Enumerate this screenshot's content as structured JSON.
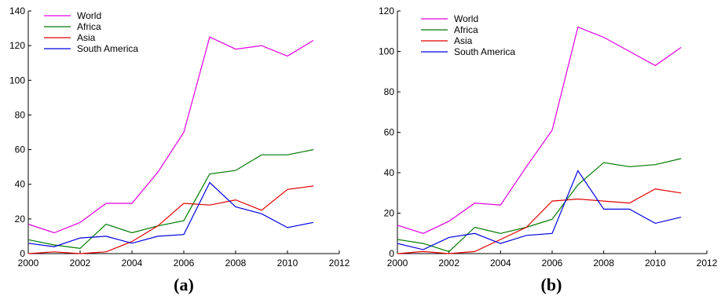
{
  "chart_data": [
    {
      "type": "line",
      "panel_label": "(a)",
      "xlim": [
        2000,
        2012
      ],
      "ylim": [
        0,
        140
      ],
      "xticks": [
        2000,
        2002,
        2004,
        2006,
        2008,
        2010,
        2012
      ],
      "yticks": [
        0,
        20,
        40,
        60,
        80,
        100,
        120,
        140
      ],
      "x": [
        2000,
        2001,
        2002,
        2003,
        2004,
        2005,
        2006,
        2007,
        2008,
        2009,
        2010,
        2011
      ],
      "legend_position": "top-left",
      "grid": false,
      "series": [
        {
          "name": "World",
          "color": "#e000e0",
          "values": [
            17,
            12,
            18,
            29,
            29,
            47,
            70,
            125,
            118,
            120,
            114,
            123
          ]
        },
        {
          "name": "Africa",
          "color": "#007a00",
          "values": [
            8,
            5,
            3,
            17,
            12,
            16,
            19,
            46,
            48,
            57,
            57,
            60
          ]
        },
        {
          "name": "Asia",
          "color": "#e00000",
          "values": [
            0,
            1,
            0,
            1,
            7,
            16,
            29,
            28,
            31,
            25,
            37,
            39
          ]
        },
        {
          "name": "South America",
          "color": "#0000e0",
          "values": [
            6,
            4,
            9,
            10,
            6,
            10,
            11,
            41,
            27,
            23,
            15,
            18
          ]
        }
      ]
    },
    {
      "type": "line",
      "panel_label": "(b)",
      "xlim": [
        2000,
        2012
      ],
      "ylim": [
        0,
        120
      ],
      "xticks": [
        2000,
        2002,
        2004,
        2006,
        2008,
        2010,
        2012
      ],
      "yticks": [
        0,
        20,
        40,
        60,
        80,
        100,
        120
      ],
      "x": [
        2000,
        2001,
        2002,
        2003,
        2004,
        2005,
        2006,
        2007,
        2008,
        2009,
        2010,
        2011
      ],
      "legend_position": "top-left",
      "grid": false,
      "series": [
        {
          "name": "World",
          "color": "#e000e0",
          "values": [
            14,
            10,
            16,
            25,
            24,
            43,
            61,
            112,
            107,
            100,
            93,
            102
          ]
        },
        {
          "name": "Africa",
          "color": "#007a00",
          "values": [
            7,
            5,
            1,
            13,
            10,
            13,
            17,
            34,
            45,
            43,
            44,
            47
          ]
        },
        {
          "name": "Asia",
          "color": "#e00000",
          "values": [
            0,
            1,
            0,
            1,
            7,
            13,
            26,
            27,
            26,
            25,
            32,
            30
          ]
        },
        {
          "name": "South America",
          "color": "#0000e0",
          "values": [
            5,
            2,
            8,
            10,
            5,
            9,
            10,
            41,
            22,
            22,
            15,
            18
          ]
        }
      ]
    }
  ]
}
